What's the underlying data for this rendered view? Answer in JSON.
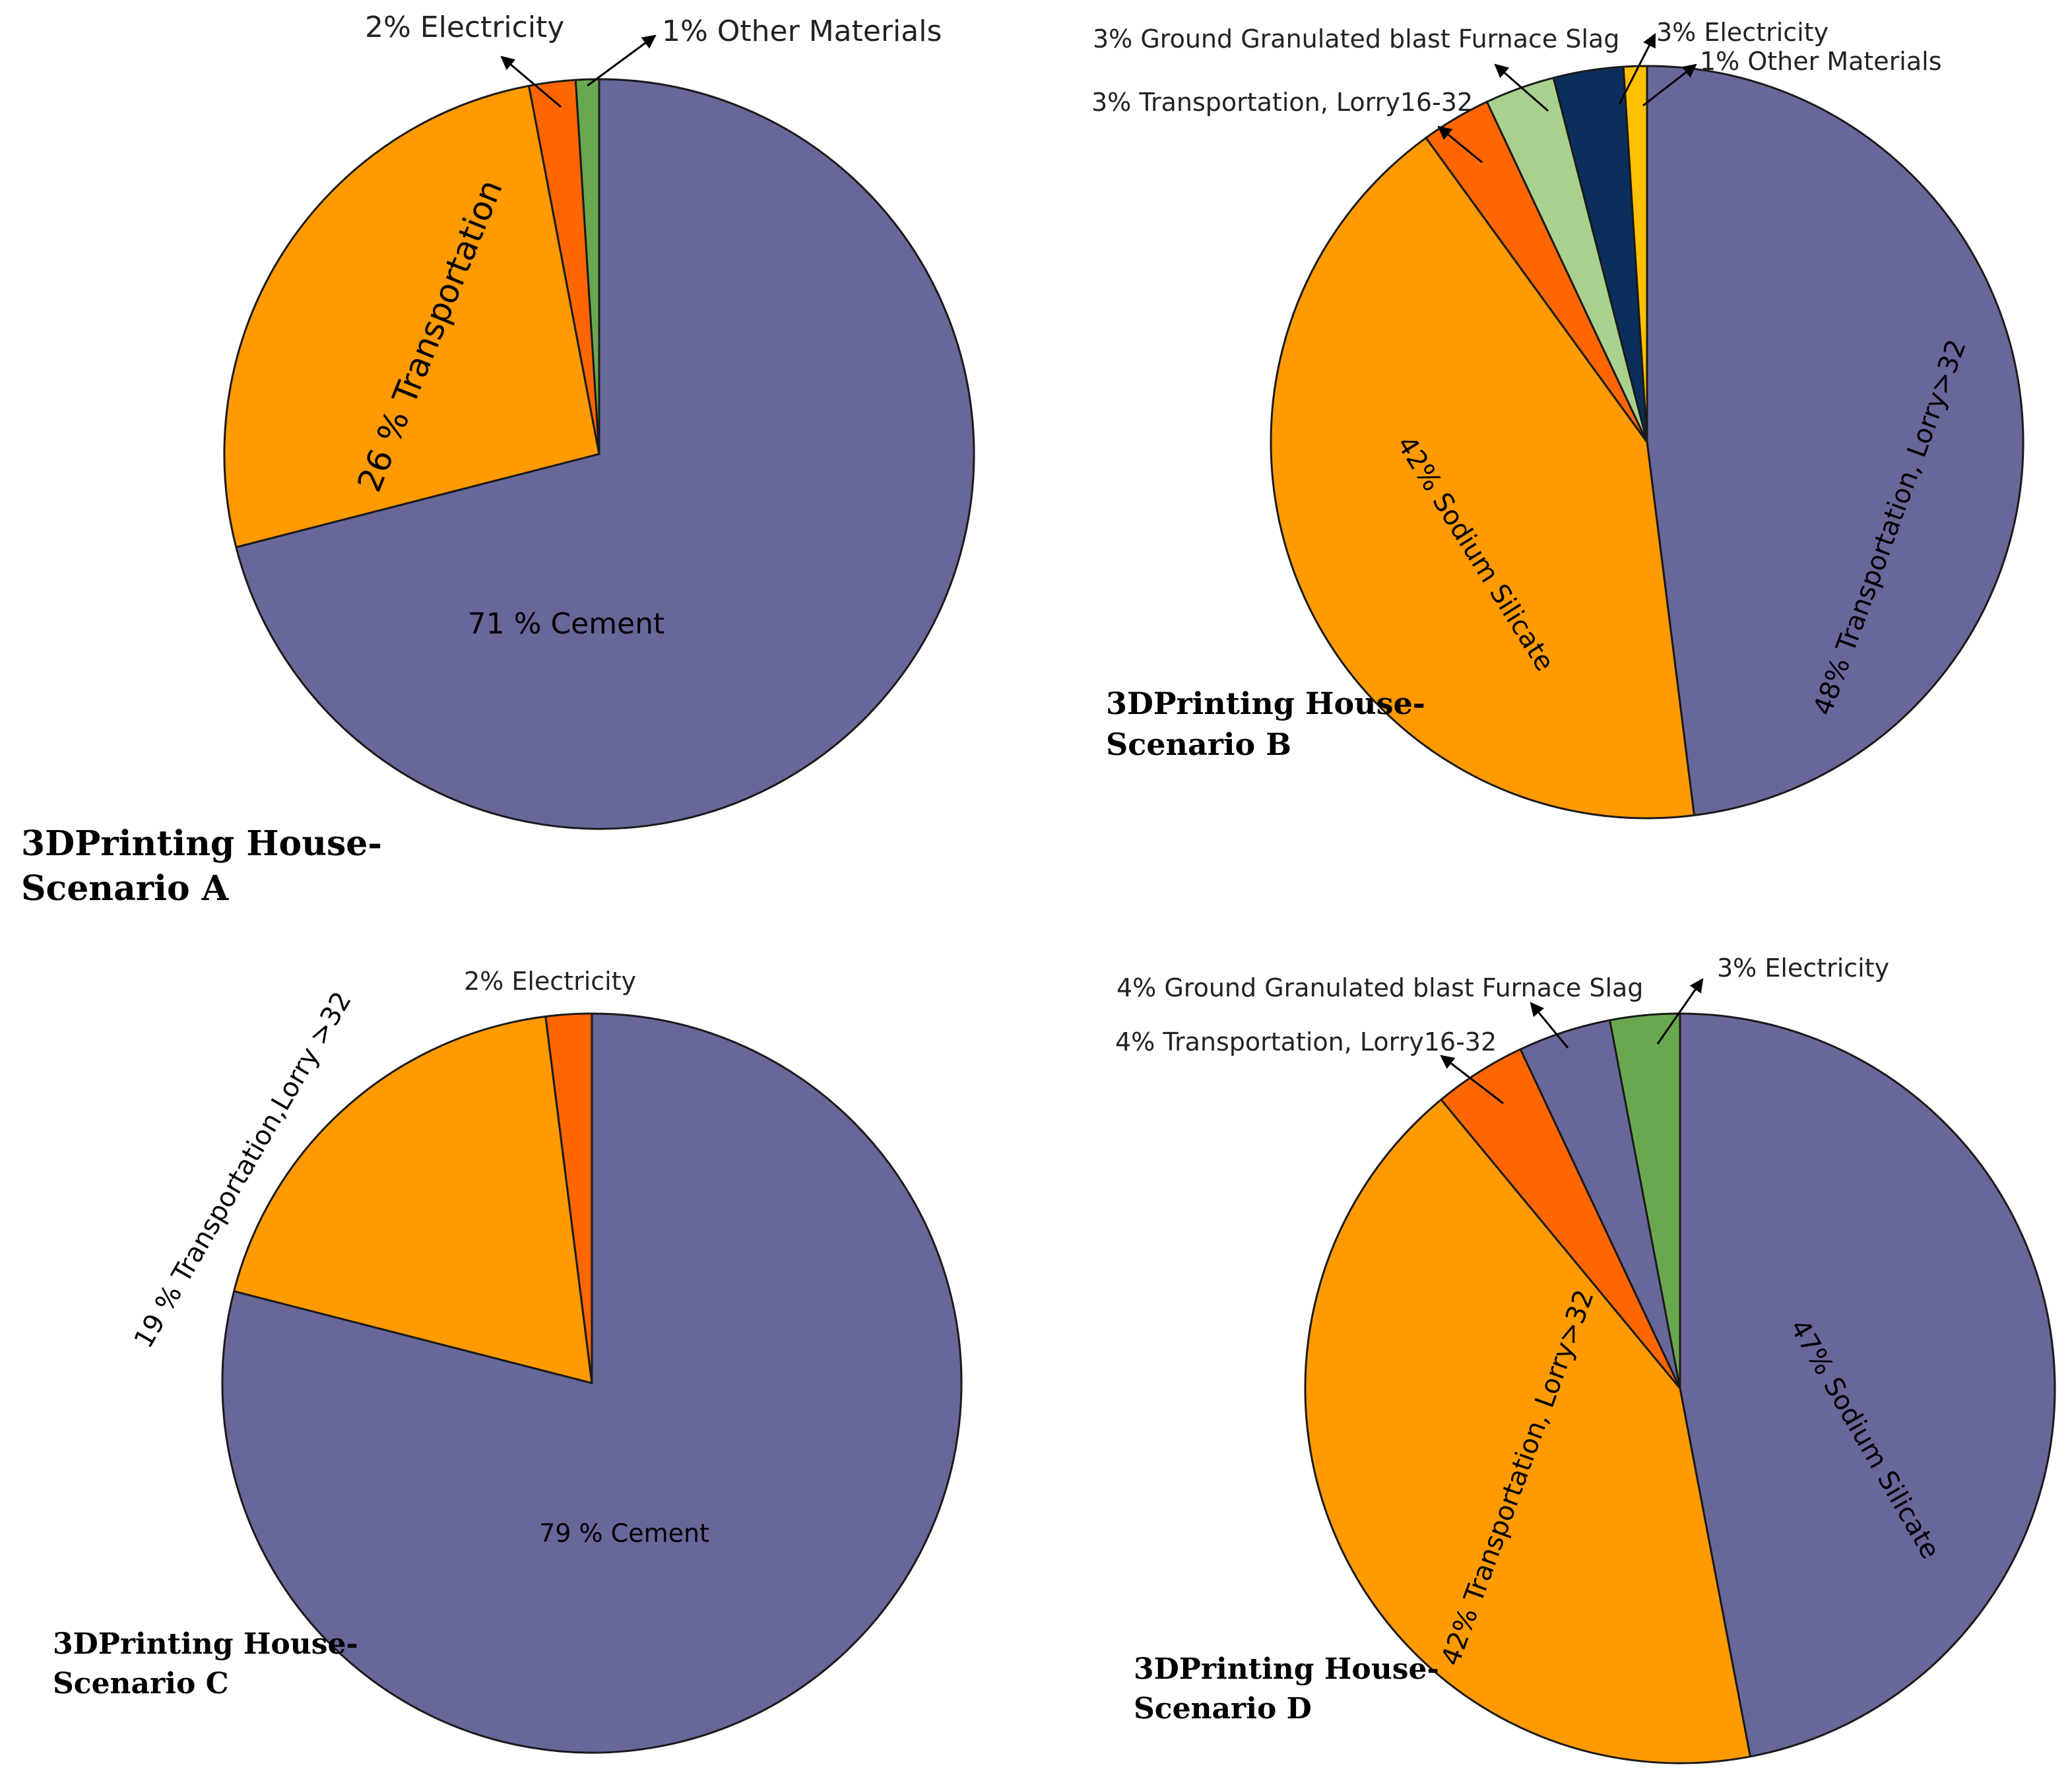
{
  "figure": {
    "background": "#ffffff"
  },
  "colors": {
    "purple": "#67679a",
    "orange": "#ff9a00",
    "red_orange": "#ff6600",
    "green": "#6aa84f",
    "light_green": "#a9d18e",
    "navy": "#0a2f5c",
    "yellow": "#ffc000",
    "outline": "#1a1a1a",
    "arrow": "#000000"
  },
  "chart_data": [
    {
      "id": "A",
      "type": "pie",
      "title_line1": "3DPrinting House-",
      "title_line2": "Scenario A",
      "start_angle_deg": 0,
      "slices": [
        {
          "name": "Cement",
          "value": 71,
          "label": "71 % Cement",
          "color": "#67679a"
        },
        {
          "name": "Transportation",
          "value": 26,
          "label": "26 % Transportation",
          "color": "#ff9a00"
        },
        {
          "name": "Electricity",
          "value": 2,
          "label": "2% Electricity",
          "color": "#ff6600"
        },
        {
          "name": "Other Materials",
          "value": 1,
          "label": "1% Other Materials",
          "color": "#6aa84f"
        }
      ]
    },
    {
      "id": "B",
      "type": "pie",
      "title_line1": "3DPrinting House-",
      "title_line2": "Scenario B",
      "start_angle_deg": 0,
      "slices": [
        {
          "name": "Transportation, Lorry>32",
          "value": 48,
          "label": "48% Transportation, Lorry>32",
          "color": "#67679a"
        },
        {
          "name": "Sodium Silicate",
          "value": 42,
          "label": "42% Sodium Silicate",
          "color": "#ff9a00"
        },
        {
          "name": "Transportation, Lorry16-32",
          "value": 3,
          "label": "3% Transportation, Lorry16-32",
          "color": "#ff6600"
        },
        {
          "name": "Ground Granulated blast Furnace Slag",
          "value": 3,
          "label": "3% Ground Granulated blast Furnace Slag",
          "color": "#a9d18e"
        },
        {
          "name": "Electricity",
          "value": 3,
          "label": "3% Electricity",
          "color": "#0a2f5c"
        },
        {
          "name": "Other Materials",
          "value": 1,
          "label": "1% Other Materials",
          "color": "#ffc000"
        }
      ]
    },
    {
      "id": "C",
      "type": "pie",
      "title_line1": "3DPrinting House-",
      "title_line2": "Scenario C",
      "start_angle_deg": 0,
      "slices": [
        {
          "name": "Cement",
          "value": 79,
          "label": "79 % Cement",
          "color": "#67679a"
        },
        {
          "name": "Transportation,Lorry >32",
          "value": 19,
          "label": "19 % Transportation,Lorry >32",
          "color": "#ff9a00"
        },
        {
          "name": "Electricity",
          "value": 2,
          "label": "2% Electricity",
          "color": "#ff6600"
        }
      ]
    },
    {
      "id": "D",
      "type": "pie",
      "title_line1": "3DPrinting House-",
      "title_line2": "Scenario D",
      "start_angle_deg": 0,
      "slices": [
        {
          "name": "Sodium Silicate",
          "value": 47,
          "label": "47% Sodium Silicate",
          "color": "#67679a"
        },
        {
          "name": "Transportation, Lorry>32",
          "value": 42,
          "label": "42% Transportation, Lorry>32",
          "color": "#ff9a00"
        },
        {
          "name": "Transportation, Lorry16-32",
          "value": 4,
          "label": "4% Transportation, Lorry16-32",
          "color": "#ff6600"
        },
        {
          "name": "Ground Granulated blast Furnace Slag",
          "value": 4,
          "label": "4% Ground Granulated blast Furnace Slag",
          "color": "#67679a"
        },
        {
          "name": "Electricity",
          "value": 3,
          "label": "3% Electricity",
          "color": "#6aa84f"
        }
      ]
    }
  ]
}
